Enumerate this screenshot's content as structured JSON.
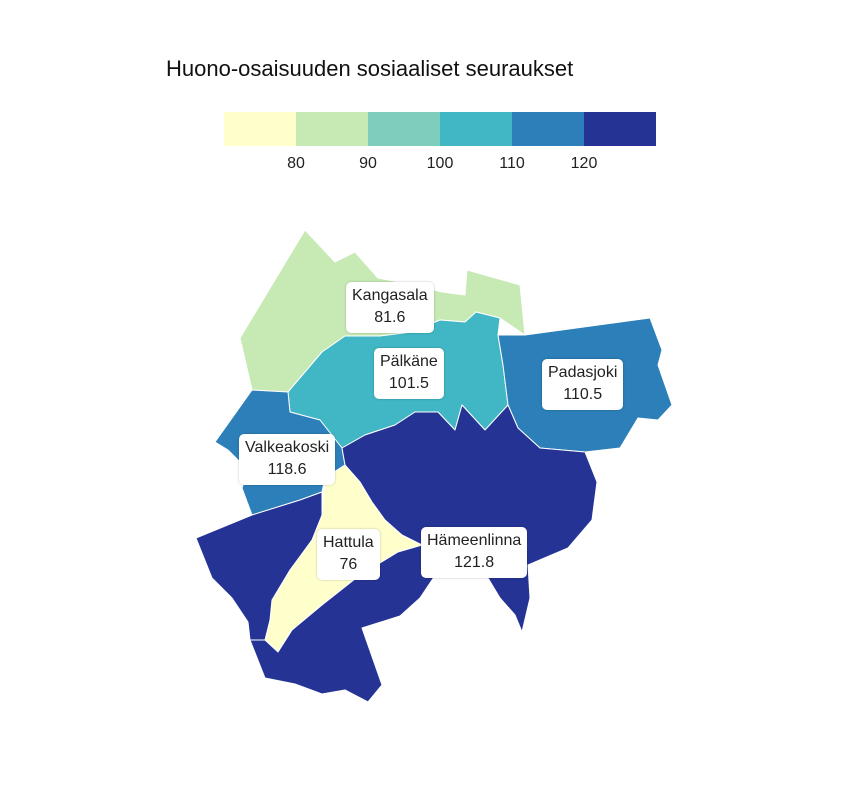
{
  "title": "Huono-osaisuuden sosiaaliset seuraukset",
  "legend": {
    "colors": [
      "#ffffcc",
      "#c7e9b4",
      "#7fcdbb",
      "#41b6c4",
      "#2c7fb8",
      "#253494"
    ],
    "ticks": [
      "80",
      "90",
      "100",
      "110",
      "120"
    ]
  },
  "municipalities": [
    {
      "name": "Kangasala",
      "value": "81.6",
      "color": "#c7e9b4"
    },
    {
      "name": "Pälkäne",
      "value": "101.5",
      "color": "#41b6c4"
    },
    {
      "name": "Padasjoki",
      "value": "110.5",
      "color": "#2c7fb8"
    },
    {
      "name": "Valkeakoski",
      "value": "118.6",
      "color": "#2c7fb8"
    },
    {
      "name": "Hattula",
      "value": "76",
      "color": "#ffffcc"
    },
    {
      "name": "Hämeenlinna",
      "value": "121.8",
      "color": "#253494"
    }
  ]
}
